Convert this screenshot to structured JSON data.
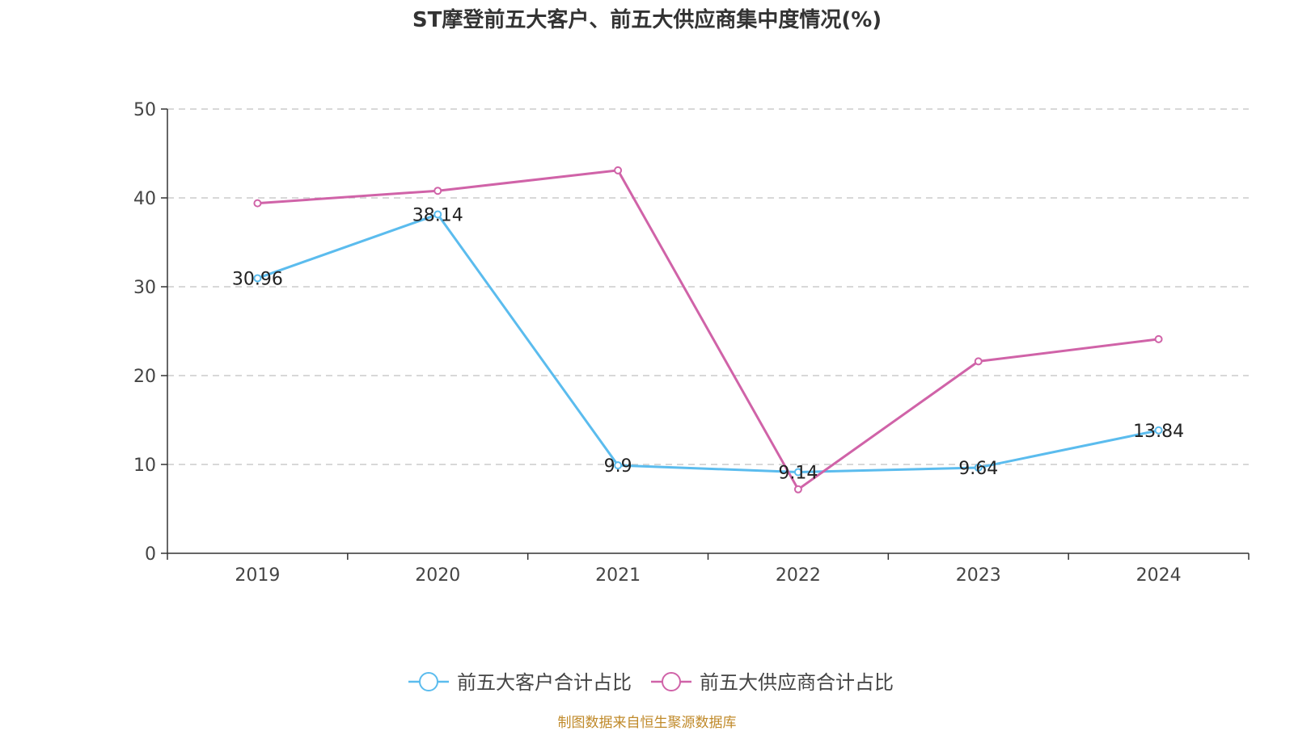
{
  "chart_data": {
    "type": "line",
    "title": "ST摩登前五大客户、前五大供应商集中度情况(%)",
    "xlabel": "",
    "ylabel": "",
    "categories": [
      "2019",
      "2020",
      "2021",
      "2022",
      "2023",
      "2024"
    ],
    "ylim": [
      0,
      50
    ],
    "yticks": [
      "0",
      "10",
      "20",
      "30",
      "40",
      "50"
    ],
    "grid": "horizontal-dashed",
    "legend_position": "bottom-center",
    "series": [
      {
        "name": "前五大客户合计占比",
        "color": "#5bbcee",
        "values": [
          30.96,
          38.14,
          9.9,
          9.14,
          9.64,
          13.84
        ],
        "labels": [
          "30.96",
          "38.14",
          "9.9",
          "9.14",
          "9.64",
          "13.84"
        ]
      },
      {
        "name": "前五大供应商合计占比",
        "color": "#d063a8",
        "values": [
          39.4,
          40.8,
          43.1,
          7.2,
          21.6,
          24.1
        ]
      }
    ]
  },
  "footer": {
    "source": "制图数据来自恒生聚源数据库"
  }
}
